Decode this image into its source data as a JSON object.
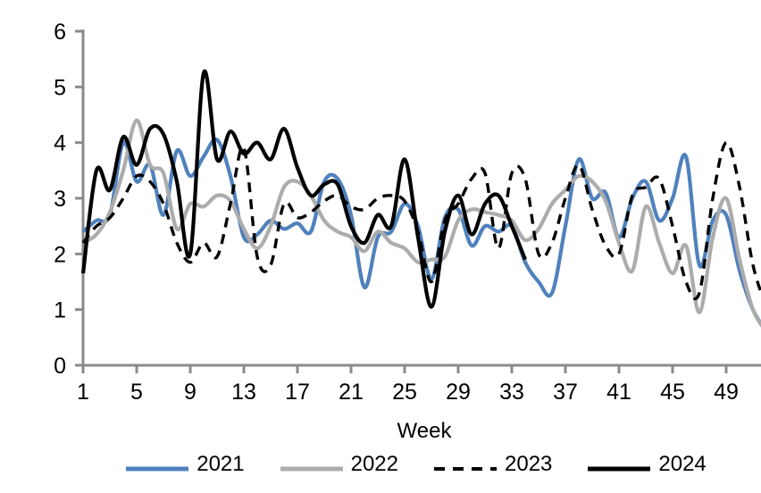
{
  "chart_data": {
    "type": "line",
    "title": "",
    "xlabel": "Week",
    "ylabel": "",
    "x_range": [
      1,
      52
    ],
    "ylim": [
      0,
      6
    ],
    "yticks": [
      0,
      1,
      2,
      3,
      4,
      5,
      6
    ],
    "xticks": [
      1,
      5,
      9,
      13,
      17,
      21,
      25,
      29,
      33,
      37,
      41,
      45,
      49
    ],
    "grid": false,
    "legend_position": "bottom",
    "axis_color": "#8A8A8A",
    "series": [
      {
        "name": "2021",
        "color": "#4F81BD",
        "style": "solid",
        "start_week": 1,
        "values": [
          2.4,
          2.6,
          2.7,
          4.0,
          3.3,
          3.6,
          2.7,
          3.85,
          3.4,
          3.75,
          4.05,
          3.4,
          2.3,
          2.35,
          2.6,
          2.45,
          2.55,
          2.4,
          3.3,
          3.35,
          2.7,
          1.4,
          2.3,
          2.4,
          2.9,
          2.5,
          1.55,
          2.65,
          2.8,
          2.15,
          2.5,
          2.4,
          2.5,
          1.85,
          1.5,
          1.3,
          2.5,
          3.7,
          3.0,
          3.1,
          2.3,
          3.0,
          3.3,
          2.6,
          3.0,
          3.75,
          1.8,
          2.6,
          2.7,
          1.7,
          1.0,
          0.6
        ]
      },
      {
        "name": "2022",
        "color": "#ACACAC",
        "style": "solid",
        "start_week": 1,
        "values": [
          2.2,
          2.35,
          2.75,
          3.5,
          4.4,
          3.6,
          3.45,
          2.45,
          2.9,
          2.85,
          3.05,
          2.95,
          2.45,
          2.1,
          2.5,
          3.2,
          3.3,
          3.05,
          2.6,
          2.4,
          2.3,
          2.05,
          2.4,
          2.2,
          2.1,
          1.85,
          1.9,
          1.95,
          2.6,
          2.8,
          2.75,
          2.7,
          2.6,
          2.25,
          2.45,
          2.9,
          3.15,
          3.4,
          3.3,
          2.95,
          2.2,
          1.7,
          2.85,
          2.2,
          1.65,
          2.15,
          0.95,
          2.3,
          3.0,
          1.9,
          1.0,
          0.6
        ]
      },
      {
        "name": "2023",
        "color": "#000000",
        "style": "dashed",
        "start_week": 1,
        "values": [
          2.2,
          2.5,
          2.65,
          3.0,
          3.4,
          3.3,
          2.9,
          2.2,
          1.85,
          2.2,
          1.95,
          2.9,
          3.9,
          1.95,
          1.8,
          2.9,
          2.65,
          2.75,
          2.95,
          3.05,
          2.85,
          2.8,
          3.0,
          3.05,
          2.95,
          2.4,
          1.5,
          2.6,
          2.9,
          3.35,
          3.45,
          2.1,
          3.45,
          3.35,
          2.0,
          2.2,
          3.0,
          3.6,
          2.8,
          2.15,
          2.0,
          3.05,
          3.2,
          3.35,
          2.5,
          1.5,
          1.3,
          3.0,
          4.0,
          3.2,
          1.8,
          1.05
        ]
      },
      {
        "name": "2024",
        "color": "#000000",
        "style": "solid",
        "start_week": 1,
        "values": [
          1.65,
          3.5,
          3.15,
          4.1,
          3.6,
          4.25,
          4.15,
          3.3,
          2.0,
          5.25,
          3.7,
          4.2,
          3.8,
          4.0,
          3.7,
          4.25,
          3.55,
          3.05,
          3.25,
          3.25,
          2.5,
          2.2,
          2.7,
          2.5,
          3.7,
          2.3,
          1.05,
          2.4,
          3.05,
          2.35,
          2.9,
          3.05,
          2.5,
          1.9
        ]
      }
    ]
  }
}
